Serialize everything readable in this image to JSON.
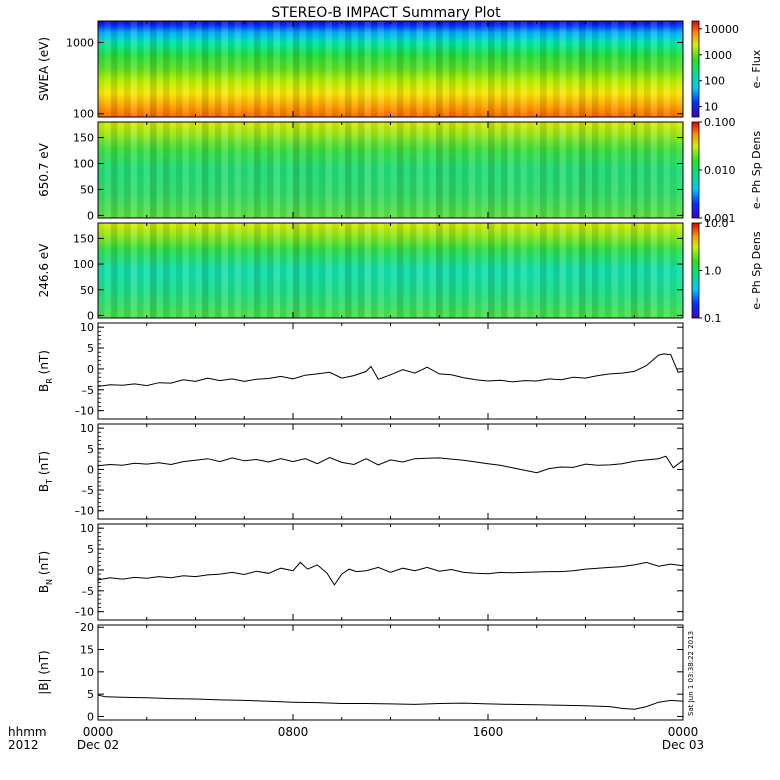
{
  "title": "STEREO-B IMPACT Summary Plot",
  "timestamp": "Sat Jun 1 03:38:22 2013",
  "x_axis": {
    "corner_labels": [
      "hhmm",
      "2012"
    ],
    "ticks": [
      {
        "label": "0000",
        "sub": "Dec 02",
        "t": 0
      },
      {
        "label": "0800",
        "sub": "",
        "t": 8
      },
      {
        "label": "1600",
        "sub": "",
        "t": 16
      },
      {
        "label": "0000",
        "sub": "Dec 03",
        "t": 24
      }
    ],
    "range": [
      0,
      24
    ]
  },
  "chart_data": [
    {
      "type": "heatmap",
      "id": "swea",
      "ylabel": "SWEA (eV)",
      "yscale": "log",
      "ylim": [
        90,
        2000
      ],
      "yticks": [
        {
          "v": 100,
          "label": "100"
        },
        {
          "v": 1000,
          "label": "1000"
        }
      ],
      "colorbar": {
        "label": "e– Flux",
        "scale": "log",
        "range": [
          4,
          20000
        ],
        "ticks": [
          {
            "v": 10,
            "label": "10"
          },
          {
            "v": 100,
            "label": "100"
          },
          {
            "v": 1000,
            "label": "1000"
          },
          {
            "v": 10000,
            "label": "10000"
          }
        ]
      }
    },
    {
      "type": "heatmap",
      "id": "pad650",
      "ylabel": "650.7 eV",
      "yscale": "linear",
      "ylim": [
        -5,
        180
      ],
      "yticks": [
        {
          "v": 0,
          "label": "0"
        },
        {
          "v": 50,
          "label": "50"
        },
        {
          "v": 100,
          "label": "100"
        },
        {
          "v": 150,
          "label": "150"
        }
      ],
      "colorbar": {
        "label": "e– Ph Sp Dens",
        "scale": "log",
        "range": [
          0.001,
          0.1
        ],
        "ticks": [
          {
            "v": 0.001,
            "label": "0.001"
          },
          {
            "v": 0.01,
            "label": "0.010"
          },
          {
            "v": 0.1,
            "label": "0.100"
          }
        ]
      }
    },
    {
      "type": "heatmap",
      "id": "pad246",
      "ylabel": "246.6 eV",
      "yscale": "linear",
      "ylim": [
        -5,
        180
      ],
      "yticks": [
        {
          "v": 0,
          "label": "0"
        },
        {
          "v": 50,
          "label": "50"
        },
        {
          "v": 100,
          "label": "100"
        },
        {
          "v": 150,
          "label": "150"
        }
      ],
      "colorbar": {
        "label": "e– Ph Sp Dens",
        "scale": "log",
        "range": [
          0.1,
          10
        ],
        "ticks": [
          {
            "v": 0.1,
            "label": "0.1"
          },
          {
            "v": 1,
            "label": "1.0"
          },
          {
            "v": 10,
            "label": "10.0"
          }
        ]
      }
    },
    {
      "type": "line",
      "id": "br",
      "ylabel_main": "B",
      "ylabel_sub": "R",
      "ylabel_unit": " (nT)",
      "ylim": [
        -12,
        11
      ],
      "yticks": [
        {
          "v": -10,
          "label": "–10"
        },
        {
          "v": -5,
          "label": "–5"
        },
        {
          "v": 0,
          "label": "0"
        },
        {
          "v": 5,
          "label": "5"
        },
        {
          "v": 10,
          "label": "10"
        }
      ],
      "x": [
        0,
        0.5,
        1,
        1.5,
        2,
        2.5,
        3,
        3.5,
        4,
        4.5,
        5,
        5.5,
        6,
        6.5,
        7,
        7.5,
        8,
        8.5,
        9,
        9.5,
        10,
        10.5,
        11,
        11.2,
        11.5,
        12,
        12.5,
        13,
        13.5,
        14,
        14.5,
        15,
        15.5,
        16,
        16.5,
        17,
        17.5,
        18,
        18.5,
        19,
        19.5,
        20,
        20.5,
        21,
        21.5,
        22,
        22.5,
        23,
        23.2,
        23.5,
        23.8,
        24
      ],
      "y": [
        -4.2,
        -3.8,
        -3.9,
        -3.6,
        -4.0,
        -3.3,
        -3.4,
        -2.6,
        -3.0,
        -2.2,
        -2.8,
        -2.4,
        -3.0,
        -2.5,
        -2.3,
        -1.8,
        -2.4,
        -1.5,
        -1.2,
        -0.8,
        -2.2,
        -1.6,
        -0.6,
        0.6,
        -2.5,
        -1.4,
        -0.2,
        -1.0,
        0.4,
        -1.2,
        -1.4,
        -2.1,
        -2.6,
        -2.9,
        -2.7,
        -3.1,
        -2.8,
        -2.9,
        -2.4,
        -2.6,
        -2.0,
        -2.2,
        -1.6,
        -1.2,
        -1.0,
        -0.6,
        0.8,
        3.3,
        3.6,
        3.4,
        -0.8,
        -0.6
      ]
    },
    {
      "type": "line",
      "id": "bt",
      "ylabel_main": "B",
      "ylabel_sub": "T",
      "ylabel_unit": " (nT)",
      "ylim": [
        -12,
        11
      ],
      "yticks": [
        {
          "v": -10,
          "label": "–10"
        },
        {
          "v": -5,
          "label": "–5"
        },
        {
          "v": 0,
          "label": "0"
        },
        {
          "v": 5,
          "label": "5"
        },
        {
          "v": 10,
          "label": "10"
        }
      ],
      "x": [
        0,
        0.5,
        1,
        1.5,
        2,
        2.5,
        3,
        3.5,
        4,
        4.5,
        5,
        5.5,
        6,
        6.5,
        7,
        7.5,
        8,
        8.5,
        9,
        9.5,
        10,
        10.5,
        11,
        11.5,
        12,
        12.5,
        13,
        13.5,
        14,
        14.5,
        15,
        15.5,
        16,
        16.5,
        17,
        17.5,
        18,
        18.5,
        19,
        19.5,
        20,
        20.5,
        21,
        21.5,
        22,
        22.5,
        23,
        23.3,
        23.6,
        24
      ],
      "y": [
        0.9,
        1.2,
        1.0,
        1.5,
        1.3,
        1.6,
        1.2,
        1.9,
        2.2,
        2.6,
        1.9,
        2.8,
        2.1,
        2.4,
        1.8,
        2.6,
        1.9,
        2.6,
        1.4,
        2.9,
        1.7,
        1.2,
        2.6,
        1.1,
        2.3,
        1.8,
        2.6,
        2.7,
        2.8,
        2.5,
        2.2,
        1.8,
        1.4,
        1.0,
        0.4,
        -0.2,
        -0.8,
        0.2,
        0.6,
        0.5,
        1.3,
        1.0,
        1.1,
        1.4,
        2.0,
        2.3,
        2.6,
        3.2,
        0.4,
        2.2
      ]
    },
    {
      "type": "line",
      "id": "bn",
      "ylabel_main": "B",
      "ylabel_sub": "N",
      "ylabel_unit": " (nT)",
      "ylim": [
        -12,
        11
      ],
      "yticks": [
        {
          "v": -10,
          "label": "–10"
        },
        {
          "v": -5,
          "label": "–5"
        },
        {
          "v": 0,
          "label": "0"
        },
        {
          "v": 5,
          "label": "5"
        },
        {
          "v": 10,
          "label": "10"
        }
      ],
      "x": [
        0,
        0.5,
        1,
        1.5,
        2,
        2.5,
        3,
        3.5,
        4,
        4.5,
        5,
        5.5,
        6,
        6.5,
        7,
        7.5,
        8,
        8.3,
        8.6,
        9,
        9.4,
        9.7,
        10,
        10.3,
        10.6,
        11,
        11.5,
        12,
        12.5,
        13,
        13.5,
        14,
        14.5,
        15,
        15.5,
        16,
        16.5,
        17,
        17.5,
        18,
        18.5,
        19,
        19.5,
        20,
        20.5,
        21,
        21.5,
        22,
        22.5,
        23,
        23.5,
        24
      ],
      "y": [
        -2.4,
        -1.9,
        -2.2,
        -1.8,
        -2.0,
        -1.6,
        -1.9,
        -1.4,
        -1.6,
        -1.2,
        -1.0,
        -0.6,
        -1.1,
        -0.3,
        -0.8,
        0.4,
        -0.2,
        1.8,
        0.2,
        1.2,
        -0.8,
        -3.6,
        -1.0,
        0.2,
        -0.4,
        -0.2,
        0.6,
        -0.6,
        0.4,
        -0.2,
        0.6,
        -0.3,
        0.1,
        -0.6,
        -0.8,
        -0.9,
        -0.6,
        -0.7,
        -0.6,
        -0.5,
        -0.4,
        -0.4,
        -0.2,
        0.2,
        0.4,
        0.6,
        0.8,
        1.2,
        1.8,
        0.9,
        1.4,
        1.0
      ]
    },
    {
      "type": "line",
      "id": "bmag",
      "ylabel_main": "|B| (nT)",
      "ylim": [
        -0.8,
        20.5
      ],
      "yticks": [
        {
          "v": 0,
          "label": "0"
        },
        {
          "v": 5,
          "label": "5"
        },
        {
          "v": 10,
          "label": "10"
        },
        {
          "v": 15,
          "label": "15"
        },
        {
          "v": 20,
          "label": "20"
        }
      ],
      "x": [
        0,
        0.3,
        1,
        2,
        3,
        4,
        5,
        6,
        7,
        8,
        9,
        10,
        11,
        12,
        13,
        14,
        15,
        16,
        17,
        18,
        19,
        20,
        21,
        21.5,
        22,
        22.5,
        23,
        23.5,
        24
      ],
      "y": [
        4.8,
        4.4,
        4.3,
        4.2,
        4.0,
        3.9,
        3.7,
        3.6,
        3.4,
        3.2,
        3.1,
        2.9,
        2.9,
        2.8,
        2.7,
        2.9,
        3.0,
        2.8,
        2.7,
        2.6,
        2.5,
        2.4,
        2.2,
        1.8,
        1.6,
        2.2,
        3.2,
        3.6,
        3.4
      ]
    }
  ]
}
